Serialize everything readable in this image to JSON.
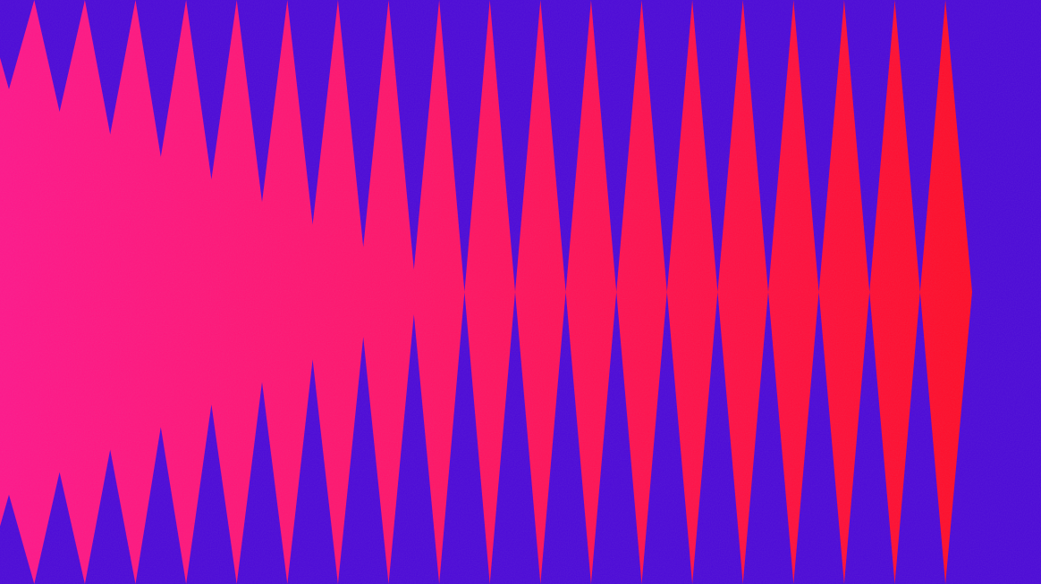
{
  "artwork": {
    "colors": {
      "background": "#4a06d8",
      "gradient_left": "#ff148e",
      "gradient_mid": "#ff1268",
      "gradient_right": "#ff0a26"
    },
    "grain": true
  }
}
